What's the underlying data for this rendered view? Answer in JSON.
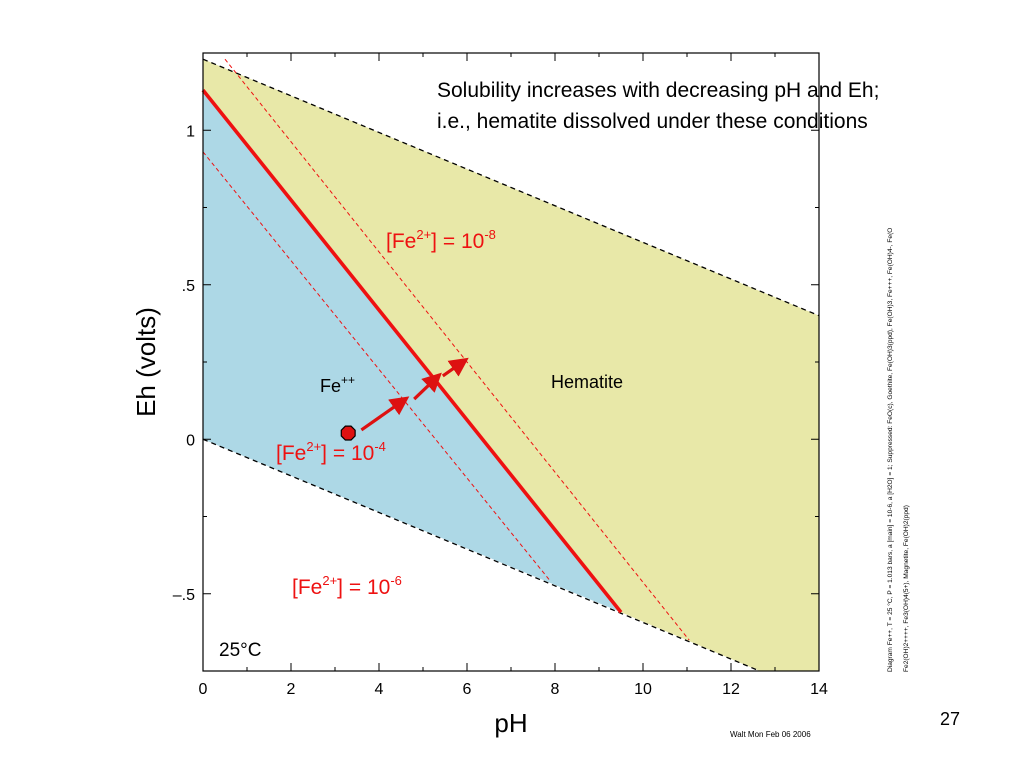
{
  "slide": {
    "page_number": "27",
    "footer_credit": "Walt Mon Feb 06 2006"
  },
  "chart_data": {
    "type": "area",
    "xlabel": "pH",
    "ylabel": "Eh (volts)",
    "xlim": [
      0,
      14
    ],
    "ylim": [
      -0.75,
      1.25
    ],
    "x_ticks": [
      0,
      2,
      4,
      6,
      8,
      10,
      12,
      14
    ],
    "x_tick_labels": [
      "0",
      "2",
      "4",
      "6",
      "8",
      "10",
      "12",
      "14"
    ],
    "y_ticks": [
      -0.5,
      0,
      0.5,
      1
    ],
    "y_tick_labels": [
      "–.5",
      "0",
      ".5",
      "1"
    ],
    "grid": false,
    "regions": [
      {
        "name": "Fe++",
        "label_base": "Fe",
        "label_sup": "++",
        "color": "#add8e6",
        "polygon": [
          [
            0,
            1.13
          ],
          [
            0,
            0
          ],
          [
            9.5,
            -0.56
          ]
        ]
      },
      {
        "name": "Hematite",
        "label": "Hematite",
        "color": "#e8e8a8",
        "polygon": [
          [
            0,
            1.23
          ],
          [
            14,
            0.4
          ],
          [
            14,
            -0.75
          ],
          [
            12.65,
            -0.75
          ],
          [
            9.5,
            -0.56
          ],
          [
            0,
            1.13
          ]
        ]
      }
    ],
    "water_stability_lines": [
      {
        "x": [
          0,
          14
        ],
        "y": [
          1.23,
          0.4
        ],
        "color": "#000000",
        "style": "dashed"
      },
      {
        "x": [
          0,
          12.65
        ],
        "y": [
          0.0,
          -0.75
        ],
        "color": "#000000",
        "style": "dashed"
      }
    ],
    "boundaries": [
      {
        "concentration": "10^-6",
        "x": [
          0,
          9.5
        ],
        "y": [
          1.13,
          -0.56
        ],
        "color": "#ee1111",
        "style": "solid"
      },
      {
        "concentration": "10^-8",
        "x": [
          0.5,
          11.05
        ],
        "y": [
          1.23,
          -0.65
        ],
        "color": "#ee1111",
        "style": "dashed"
      },
      {
        "concentration": "10^-4",
        "x": [
          0,
          7.9
        ],
        "y": [
          0.93,
          -0.46
        ],
        "color": "#ee1111",
        "style": "dashed"
      }
    ],
    "marker": {
      "x": 3.3,
      "y": 0.02,
      "color": "#dd1111"
    },
    "arrows": [
      {
        "from": [
          3.6,
          0.03
        ],
        "to": [
          4.6,
          0.13
        ]
      },
      {
        "from": [
          4.8,
          0.13
        ],
        "to": [
          5.35,
          0.205
        ]
      },
      {
        "from": [
          5.45,
          0.205
        ],
        "to": [
          5.95,
          0.255
        ]
      }
    ],
    "annotations": {
      "solubility_line1": "Solubility increases with decreasing pH and Eh;",
      "solubility_line2": "i.e., hematite dissolved under these conditions",
      "conc_prefix": "[Fe",
      "conc_charge": "2+",
      "conc_mid": "] = 10",
      "conc_exp_minus8": "-8",
      "conc_exp_minus4": "-4",
      "conc_exp_minus6": "-6",
      "temperature": "25°C",
      "side_note_line1": "Diagram Fe++, T = 25 °C, P = 1.013 bars, a [main] = 10-6, a [H2O] = 1; Suppressed: FeO(c), Goethite, Fe(OH)3(ppd), Fe(OH)3, Fe+++, Fe(OH)4-, Fe(O",
      "side_note_line2": "Fe2(OH)2++++, Fe3(OH)4(5+), Magnetite, Fe(OH)2(ppd)"
    }
  }
}
